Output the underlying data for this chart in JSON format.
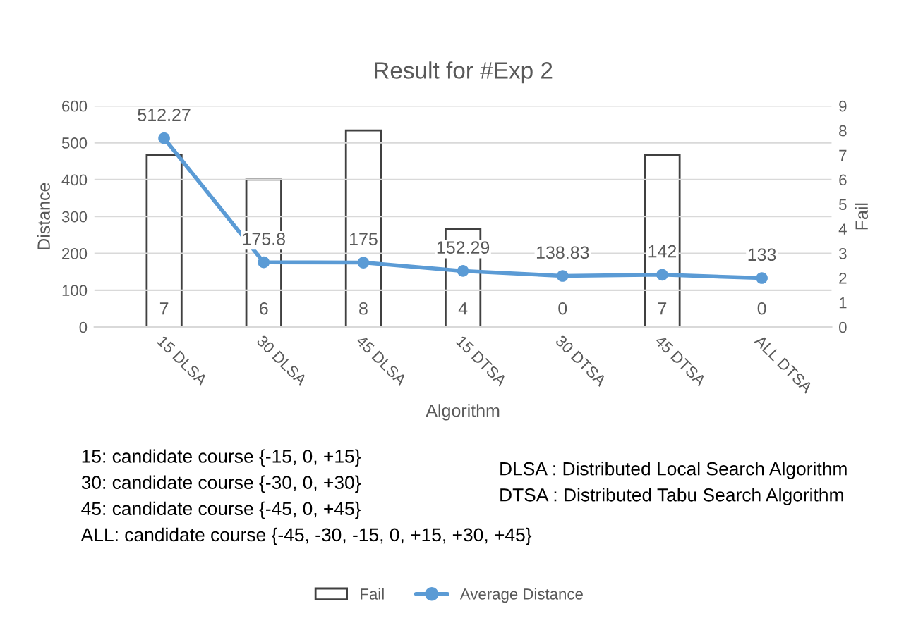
{
  "chart_data": {
    "type": "bar",
    "title": "Result for #Exp 2",
    "xlabel": "Algorithm",
    "ylabel": "Distance",
    "y2label": "Fail",
    "categories": [
      "15 DLSA",
      "30 DLSA",
      "45 DLSA",
      "15 DTSA",
      "30 DTSA",
      "45 DTSA",
      "ALL DTSA"
    ],
    "series": [
      {
        "name": "Fail",
        "axis": "y2",
        "color": "#ffffff",
        "values": [
          7,
          6,
          8,
          4,
          0,
          7,
          0
        ]
      },
      {
        "name": "Average Distance",
        "type": "line",
        "color": "#5b9bd5",
        "marker": "circle",
        "values": [
          512.27,
          175.8,
          175,
          152.29,
          138.83,
          142,
          133
        ]
      }
    ],
    "ylim": [
      0,
      600
    ],
    "yticks": [
      0,
      100,
      200,
      300,
      400,
      500,
      600
    ],
    "y2lim": [
      0,
      9
    ],
    "y2ticks": [
      0,
      1,
      2,
      3,
      4,
      5,
      6,
      7,
      8,
      9
    ],
    "grid": "y",
    "legend": "bottom",
    "data_labels": true,
    "annotations": [
      "15: candidate course {-15, 0, +15}",
      "30: candidate course {-30, 0, +30}",
      "45: candidate course {-45, 0, +45}",
      "ALL: candidate course {-45, -30, -15, 0, +15, +30, +45}",
      "DLSA : Distributed Local Search Algorithm",
      "DTSA : Distributed Tabu Search Algorithm"
    ]
  }
}
